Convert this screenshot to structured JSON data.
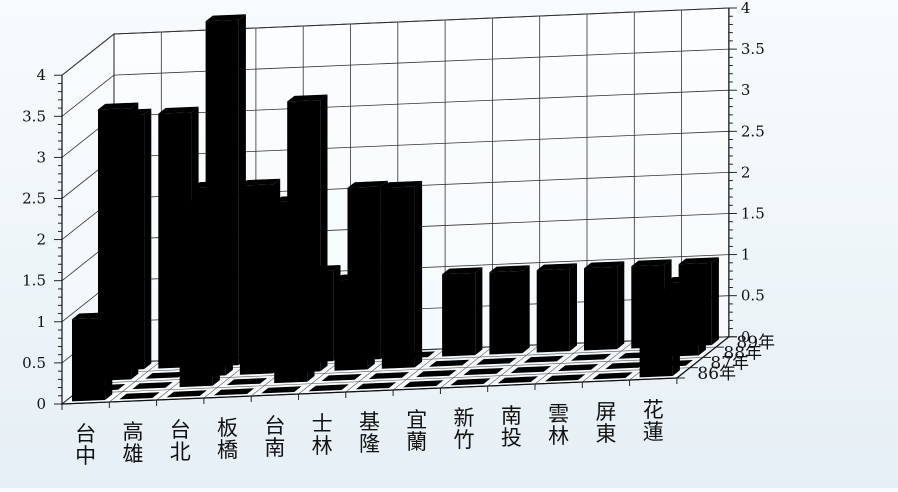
{
  "chart_data": {
    "type": "bar",
    "title": "",
    "xlabel": "",
    "ylabel": "",
    "ylim": [
      0,
      4
    ],
    "yticks": [
      "0",
      "0.5",
      "1",
      "1.5",
      "2",
      "2.5",
      "3",
      "3.5",
      "4"
    ],
    "grid": true,
    "categories": [
      "台中",
      "高雄",
      "台北",
      "板橋",
      "台南",
      "士林",
      "基隆",
      "宜蘭",
      "新竹",
      "南投",
      "雲林",
      "屏東",
      "花蓮"
    ],
    "series": [
      {
        "name": "86年",
        "color": "#9b86c4",
        "values": [
          1,
          0,
          0,
          0,
          0,
          0,
          0,
          0,
          0,
          0,
          0,
          0,
          1
        ]
      },
      {
        "name": "87年",
        "color": "#86c79c",
        "values": [
          0,
          0,
          2.2,
          0,
          2.2,
          0,
          0,
          0,
          0,
          0,
          0,
          0,
          0
        ]
      },
      {
        "name": "88年",
        "color": "#f2bc6e",
        "values": [
          3.3,
          0,
          2.3,
          2.3,
          3.3,
          1.1,
          2.2,
          0,
          0,
          0,
          0,
          0,
          0.9
        ]
      },
      {
        "name": "89年",
        "color": "#98adbd",
        "values": [
          3.1,
          3.1,
          4.2,
          0,
          1.1,
          2.1,
          0,
          1,
          1,
          1,
          1,
          1,
          1
        ]
      }
    ]
  }
}
